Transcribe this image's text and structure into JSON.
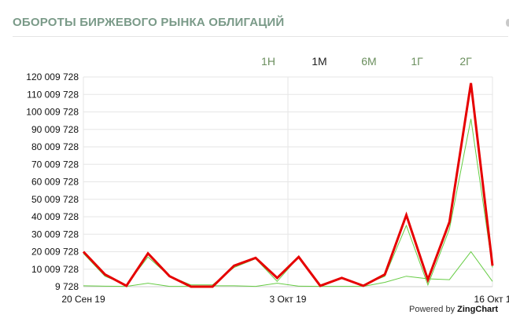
{
  "title": "ОБОРОТЫ БИРЖЕВОГО РЫНКА ОБЛИГАЦИЙ",
  "range_tabs": [
    {
      "label": "1Н",
      "active": false
    },
    {
      "label": "1М",
      "active": true
    },
    {
      "label": "6М",
      "active": false
    },
    {
      "label": "1Г",
      "active": false
    },
    {
      "label": "2Г",
      "active": false
    }
  ],
  "powered_prefix": "Powered by",
  "powered_brand": "ZingChart",
  "colors": {
    "title": "#7a9a88",
    "tab_active": "#222222",
    "tab_inactive": "#6b8f5e",
    "series_main": "#e60000",
    "series_thin": "#66cc44",
    "grid": "#e6e6e6"
  },
  "chart_data": {
    "type": "line",
    "x_tick_labels": [
      "20 Сен 19",
      "3 Окт 19",
      "16 Окт 1"
    ],
    "y_tick_labels": [
      "9 728",
      "10 009 728",
      "20 009 728",
      "30 009 728",
      "40 009 728",
      "50 009 728",
      "60 009 728",
      "70 009 728",
      "80 009 728",
      "90 009 728",
      "100 009 728",
      "110 009 728",
      "120 009 728"
    ],
    "y_ticks": [
      9728,
      10009728,
      20009728,
      30009728,
      40009728,
      50009728,
      60009728,
      70009728,
      80009728,
      90009728,
      100009728,
      110009728,
      120009728
    ],
    "ylim": [
      9728,
      120009728
    ],
    "x_count": 20,
    "series": [
      {
        "values": [
          20000000,
          7000000,
          500000,
          19000000,
          6000000,
          0,
          0,
          12000000,
          16500000,
          5000000,
          17000000,
          500000,
          5000000,
          500000,
          7000000,
          41000000,
          4000000,
          37000000,
          116500000,
          12000000
        ],
        "width": 3,
        "color_key": "series_main"
      },
      {
        "values": [
          19000000,
          6000000,
          1000000,
          17000000,
          6000000,
          1000000,
          1000000,
          11000000,
          16000000,
          3000000,
          17000000,
          1000000,
          5000000,
          1000000,
          6000000,
          35000000,
          1000000,
          33000000,
          96000000,
          11000000
        ],
        "width": 1,
        "color_key": "series_thin"
      },
      {
        "values": [
          500000,
          300000,
          200000,
          2000000,
          200000,
          200000,
          500000,
          500000,
          200000,
          2000000,
          300000,
          200000,
          200000,
          200000,
          2500000,
          6000000,
          4500000,
          4000000,
          20000000,
          3000000
        ],
        "width": 1,
        "color_key": "series_thin"
      }
    ]
  }
}
